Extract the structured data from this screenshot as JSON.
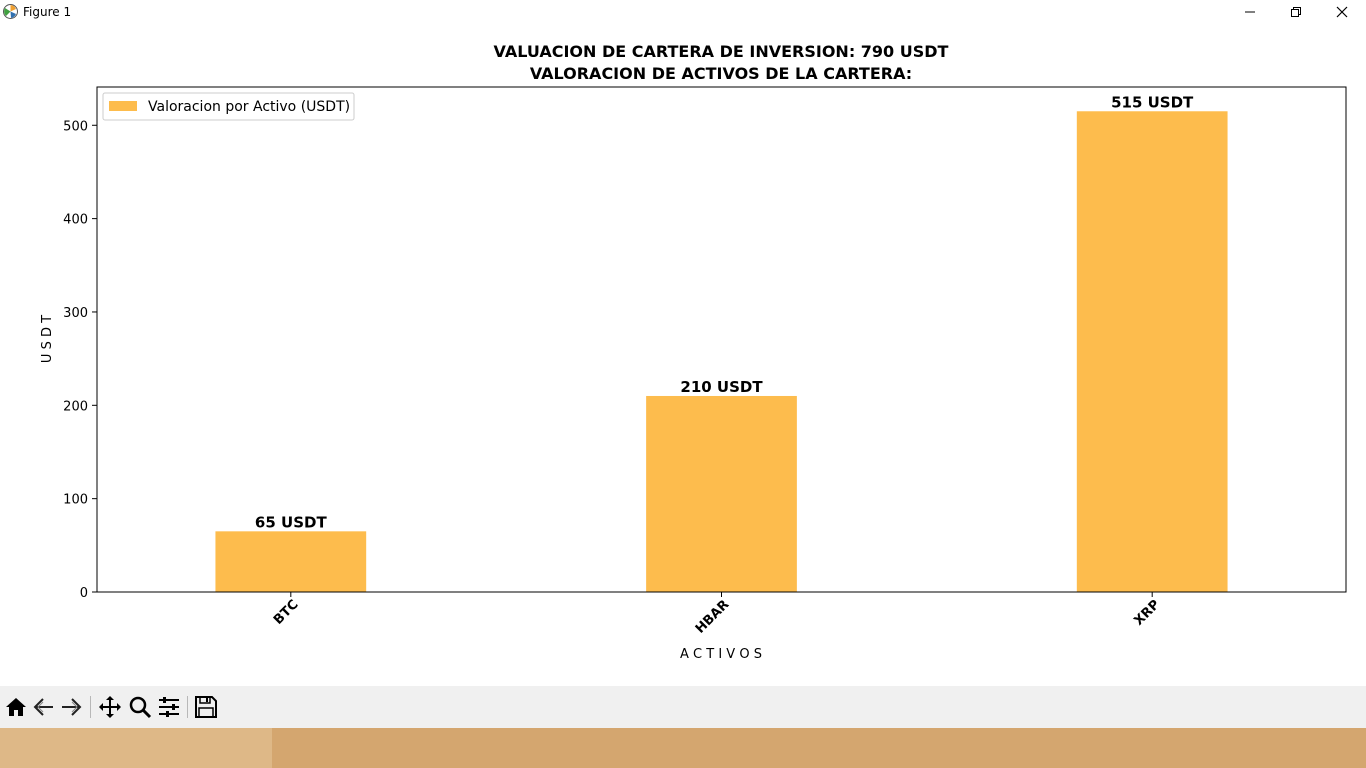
{
  "window": {
    "title": "Figure 1"
  },
  "colors": {
    "bar": "#fdbc4d",
    "taskbar": "#d4a66f",
    "taskbar_active": "#deb887",
    "toolbar": "#f0f0f0"
  },
  "toolbar": {
    "icons": [
      "home-icon",
      "back-arrow-icon",
      "forward-arrow-icon",
      "pan-icon",
      "zoom-icon",
      "configure-subplots-icon",
      "save-icon"
    ]
  },
  "chart_data": {
    "type": "bar",
    "title": "VALUACION DE CARTERA DE INVERSION: 790 USDT",
    "subtitle": "VALORACION DE ACTIVOS DE LA CARTERA:",
    "xlabel": "A C T I V O S",
    "ylabel": "U S D T",
    "categories": [
      "BTC",
      "HBAR",
      "XRP"
    ],
    "series": [
      {
        "name": "Valoracion por Activo (USDT)",
        "values": [
          65,
          210,
          515
        ]
      }
    ],
    "data_labels": [
      "65 USDT",
      "210 USDT",
      "515 USDT"
    ],
    "yticks": [
      0,
      100,
      200,
      300,
      400,
      500
    ],
    "ylim": [
      0,
      541
    ],
    "grid": false,
    "legend_position": "top-left",
    "xtick_rotation": 45
  }
}
